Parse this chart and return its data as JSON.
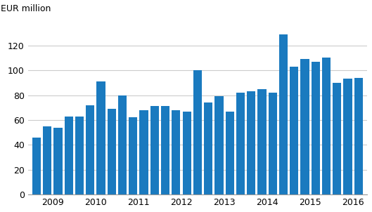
{
  "values": [
    46,
    55,
    54,
    63,
    63,
    72,
    91,
    69,
    80,
    62,
    68,
    71,
    71,
    68,
    67,
    100,
    74,
    79,
    67,
    82,
    83,
    85,
    82,
    129,
    103,
    109,
    107,
    110,
    90,
    93,
    94
  ],
  "year_labels": [
    "2009",
    "2010",
    "2011",
    "2012",
    "2013",
    "2014",
    "2015",
    "2016"
  ],
  "year_positions": [
    1.5,
    5.5,
    9.5,
    13.5,
    17.5,
    21.5,
    25.5,
    29.5
  ],
  "bar_color": "#1a7abf",
  "ylabel": "EUR million",
  "ylim": [
    0,
    140
  ],
  "yticks": [
    0,
    20,
    40,
    60,
    80,
    100,
    120
  ],
  "grid_color": "#cccccc",
  "background_color": "#ffffff",
  "ylabel_fontsize": 9,
  "tick_fontsize": 9
}
